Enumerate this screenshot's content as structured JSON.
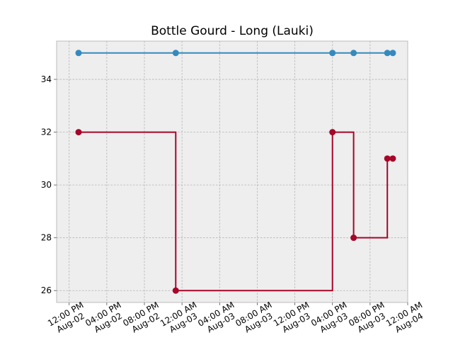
{
  "chart_data": {
    "type": "line",
    "title": "Bottle Gourd - Long (Lauki)",
    "xlabel": "",
    "ylabel": "",
    "x_type": "datetime",
    "xlim": [
      "2024-08-02 10:40",
      "2024-08-04 00:00"
    ],
    "ylim": [
      25.55,
      35.45
    ],
    "y_ticks": [
      26,
      28,
      30,
      32,
      34
    ],
    "x_ticks": [
      {
        "t": "2024-08-02 12:00",
        "line1": "12:00 PM",
        "line2": "Aug-02"
      },
      {
        "t": "2024-08-02 16:00",
        "line1": "04:00 PM",
        "line2": "Aug-02"
      },
      {
        "t": "2024-08-02 20:00",
        "line1": "08:00 PM",
        "line2": "Aug-02"
      },
      {
        "t": "2024-08-03 00:00",
        "line1": "12:00 AM",
        "line2": "Aug-03"
      },
      {
        "t": "2024-08-03 04:00",
        "line1": "04:00 AM",
        "line2": "Aug-03"
      },
      {
        "t": "2024-08-03 08:00",
        "line1": "08:00 AM",
        "line2": "Aug-03"
      },
      {
        "t": "2024-08-03 12:00",
        "line1": "12:00 PM",
        "line2": "Aug-03"
      },
      {
        "t": "2024-08-03 16:00",
        "line1": "04:00 PM",
        "line2": "Aug-03"
      },
      {
        "t": "2024-08-03 20:00",
        "line1": "08:00 PM",
        "line2": "Aug-03"
      },
      {
        "t": "2024-08-04 00:00",
        "line1": "12:00 AM",
        "line2": "Aug-04"
      }
    ],
    "grid": true,
    "step": "post",
    "series": [
      {
        "color": "#348abd",
        "points": [
          {
            "x": "2024-08-02 13:00",
            "y": 35
          },
          {
            "x": "2024-08-02 23:20",
            "y": 35
          },
          {
            "x": "2024-08-03 16:00",
            "y": 35
          },
          {
            "x": "2024-08-03 18:15",
            "y": 35
          },
          {
            "x": "2024-08-03 21:50",
            "y": 35
          },
          {
            "x": "2024-08-03 22:25",
            "y": 35
          }
        ]
      },
      {
        "color": "#a60628",
        "points": [
          {
            "x": "2024-08-02 13:00",
            "y": 32
          },
          {
            "x": "2024-08-02 23:20",
            "y": 26
          },
          {
            "x": "2024-08-03 16:00",
            "y": 32
          },
          {
            "x": "2024-08-03 18:15",
            "y": 28
          },
          {
            "x": "2024-08-03 21:50",
            "y": 31
          },
          {
            "x": "2024-08-03 22:25",
            "y": 31
          }
        ]
      }
    ]
  }
}
